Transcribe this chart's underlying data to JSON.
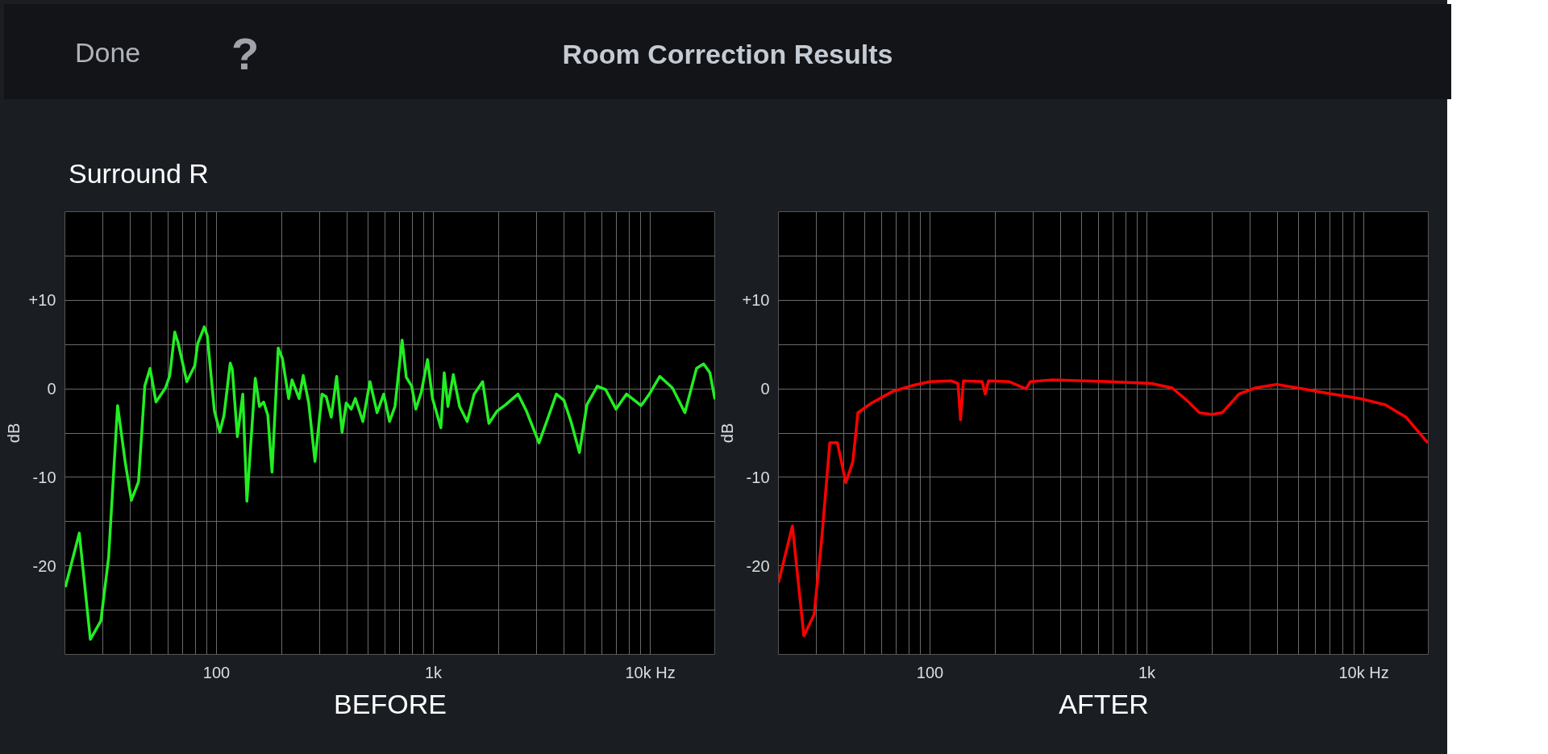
{
  "chart_data": [
    {
      "type": "line",
      "title": "Room Correction Results",
      "subtitle": "Surround R",
      "annotations": [
        "Done",
        "?"
      ],
      "xlabel": "BEFORE",
      "ylabel": "dB",
      "log": "x",
      "grid": true,
      "xlim": [
        20,
        20000
      ],
      "ylim": [
        -30,
        20
      ],
      "xticks": [
        {
          "value": 20,
          "label": null
        },
        {
          "value": 30,
          "label": null
        },
        {
          "value": 40,
          "label": null
        },
        {
          "value": 50,
          "label": null
        },
        {
          "value": 60,
          "label": null
        },
        {
          "value": 70,
          "label": null
        },
        {
          "value": 80,
          "label": null
        },
        {
          "value": 90,
          "label": null
        },
        100,
        {
          "value": 200,
          "label": null
        },
        {
          "value": 300,
          "label": null
        },
        {
          "value": 400,
          "label": null
        },
        {
          "value": 500,
          "label": null
        },
        {
          "value": 600,
          "label": null
        },
        {
          "value": 700,
          "label": null
        },
        {
          "value": 800,
          "label": null
        },
        {
          "value": 900,
          "label": null
        },
        {
          "value": 1000,
          "label": "1k"
        },
        {
          "value": 2000,
          "label": null
        },
        {
          "value": 3000,
          "label": null
        },
        {
          "value": 4000,
          "label": null
        },
        {
          "value": 5000,
          "label": null
        },
        {
          "value": 6000,
          "label": null
        },
        {
          "value": 7000,
          "label": null
        },
        {
          "value": 8000,
          "label": null
        },
        {
          "value": 9000,
          "label": null
        },
        {
          "value": 10000,
          "label": "10k Hz"
        }
      ],
      "yticks": [
        {
          "value": -25,
          "label": null
        },
        -20,
        {
          "value": -15,
          "label": null
        },
        -10,
        {
          "value": -5,
          "label": null
        },
        0,
        {
          "value": 5,
          "label": null
        },
        {
          "value": 10,
          "label": "+10"
        },
        {
          "value": 15,
          "label": null
        }
      ],
      "series": [
        {
          "color": "#22ee22",
          "x": [
            20.1,
            23.3,
            26.2,
            29.3,
            31.8,
            35.0,
            37.9,
            40.5,
            43.7,
            46.7,
            49.4,
            52.6,
            58.2,
            60.9,
            64.2,
            66.5,
            73.0,
            79.4,
            81.9,
            87.9,
            90.7,
            97.8,
            103.6,
            108.3,
            115.7,
            118.3,
            124.8,
            132.2,
            138.1,
            150.9,
            157.8,
            164.9,
            172.5,
            180.3,
            192.6,
            201.4,
            215.2,
            223.0,
            240.4,
            251.2,
            266.2,
            284.5,
            306.7,
            320.6,
            338.1,
            358.1,
            379.3,
            396.4,
            417.9,
            436.7,
            473.0,
            510.2,
            550.1,
            590.3,
            627.9,
            665.1,
            717.5,
            750.0,
            794.3,
            830.0,
            879.5,
            940.0,
            991.0,
            1083,
            1122,
            1167,
            1236,
            1321,
            1432,
            1542,
            1687,
            1803,
            1969,
            2153,
            2456,
            2685,
            3069,
            3352,
            3690,
            3999,
            4334,
            4712,
            5105,
            5702,
            6226,
            6953,
            7766,
            9072,
            9906,
            11070,
            12650,
            14450,
            16340,
            17620,
            18840,
            19870
          ],
          "values": [
            -22.4,
            -16.3,
            -28.3,
            -26.2,
            -19.1,
            -1.9,
            -8.2,
            -12.6,
            -10.5,
            0.3,
            2.3,
            -1.5,
            0.1,
            1.5,
            6.4,
            5.2,
            0.8,
            2.6,
            5.1,
            7.0,
            6.0,
            -2.5,
            -4.9,
            -3.0,
            2.9,
            2.2,
            -5.4,
            -0.6,
            -12.7,
            1.2,
            -2.0,
            -1.5,
            -3.0,
            -9.4,
            4.6,
            3.4,
            -1.1,
            1.0,
            -1.1,
            1.5,
            -1.6,
            -8.2,
            -0.6,
            -0.9,
            -3.2,
            1.4,
            -4.9,
            -1.6,
            -2.3,
            -1.1,
            -3.7,
            0.8,
            -2.7,
            -0.6,
            -3.7,
            -2.0,
            5.5,
            1.3,
            0.3,
            -2.3,
            -0.4,
            3.3,
            -1.1,
            -4.4,
            1.8,
            -2.0,
            1.6,
            -2.0,
            -3.7,
            -0.6,
            0.8,
            -3.9,
            -2.5,
            -1.8,
            -0.6,
            -2.5,
            -6.1,
            -3.5,
            -0.6,
            -1.3,
            -3.9,
            -7.2,
            -1.8,
            0.3,
            -0.1,
            -2.3,
            -0.6,
            -1.9,
            -0.6,
            1.4,
            0.1,
            -2.7,
            2.3,
            2.8,
            1.8,
            -1.2
          ]
        }
      ]
    },
    {
      "type": "line",
      "xlabel": "AFTER",
      "ylabel": "dB",
      "log": "x",
      "grid": true,
      "xlim": [
        20,
        20000
      ],
      "ylim": [
        -30,
        20
      ],
      "xticks": [
        {
          "value": 20,
          "label": null
        },
        {
          "value": 30,
          "label": null
        },
        {
          "value": 40,
          "label": null
        },
        {
          "value": 50,
          "label": null
        },
        {
          "value": 60,
          "label": null
        },
        {
          "value": 70,
          "label": null
        },
        {
          "value": 80,
          "label": null
        },
        {
          "value": 90,
          "label": null
        },
        100,
        {
          "value": 200,
          "label": null
        },
        {
          "value": 300,
          "label": null
        },
        {
          "value": 400,
          "label": null
        },
        {
          "value": 500,
          "label": null
        },
        {
          "value": 600,
          "label": null
        },
        {
          "value": 700,
          "label": null
        },
        {
          "value": 800,
          "label": null
        },
        {
          "value": 900,
          "label": null
        },
        {
          "value": 1000,
          "label": "1k"
        },
        {
          "value": 2000,
          "label": null
        },
        {
          "value": 3000,
          "label": null
        },
        {
          "value": 4000,
          "label": null
        },
        {
          "value": 5000,
          "label": null
        },
        {
          "value": 6000,
          "label": null
        },
        {
          "value": 7000,
          "label": null
        },
        {
          "value": 8000,
          "label": null
        },
        {
          "value": 9000,
          "label": null
        },
        {
          "value": 10000,
          "label": "10k Hz"
        }
      ],
      "yticks": [
        {
          "value": -25,
          "label": null
        },
        -20,
        {
          "value": -15,
          "label": null
        },
        -10,
        {
          "value": -5,
          "label": null
        },
        0,
        {
          "value": 5,
          "label": null
        },
        {
          "value": 10,
          "label": "+10"
        },
        {
          "value": 15,
          "label": null
        }
      ],
      "series": [
        {
          "color": "#ff0000",
          "x": [
            20,
            23.2,
            26.2,
            29.2,
            31.6,
            34.5,
            37.4,
            40.9,
            44.1,
            46.5,
            53.8,
            67.2,
            83.8,
            100,
            124.8,
            134.5,
            138.2,
            142.6,
            174.0,
            179.6,
            186,
            232,
            277,
            290,
            362,
            673,
            1047,
            1306,
            1527,
            1745,
            1992,
            2225,
            2656,
            3171,
            3961,
            4943,
            6745,
            9616,
            12540,
            15640,
            19720
          ],
          "values": [
            -21.9,
            -15.5,
            -27.9,
            -25.5,
            -17.2,
            -6.1,
            -6.1,
            -10.6,
            -8.2,
            -2.7,
            -1.6,
            -0.3,
            0.4,
            0.8,
            0.9,
            0.6,
            -3.5,
            0.9,
            0.8,
            -0.6,
            0.9,
            0.8,
            0.0,
            0.8,
            1.0,
            0.8,
            0.6,
            0.1,
            -1.3,
            -2.7,
            -2.9,
            -2.7,
            -0.6,
            0.1,
            0.5,
            0.1,
            -0.5,
            -1.1,
            -1.8,
            -3.2,
            -6.1
          ]
        }
      ]
    }
  ]
}
